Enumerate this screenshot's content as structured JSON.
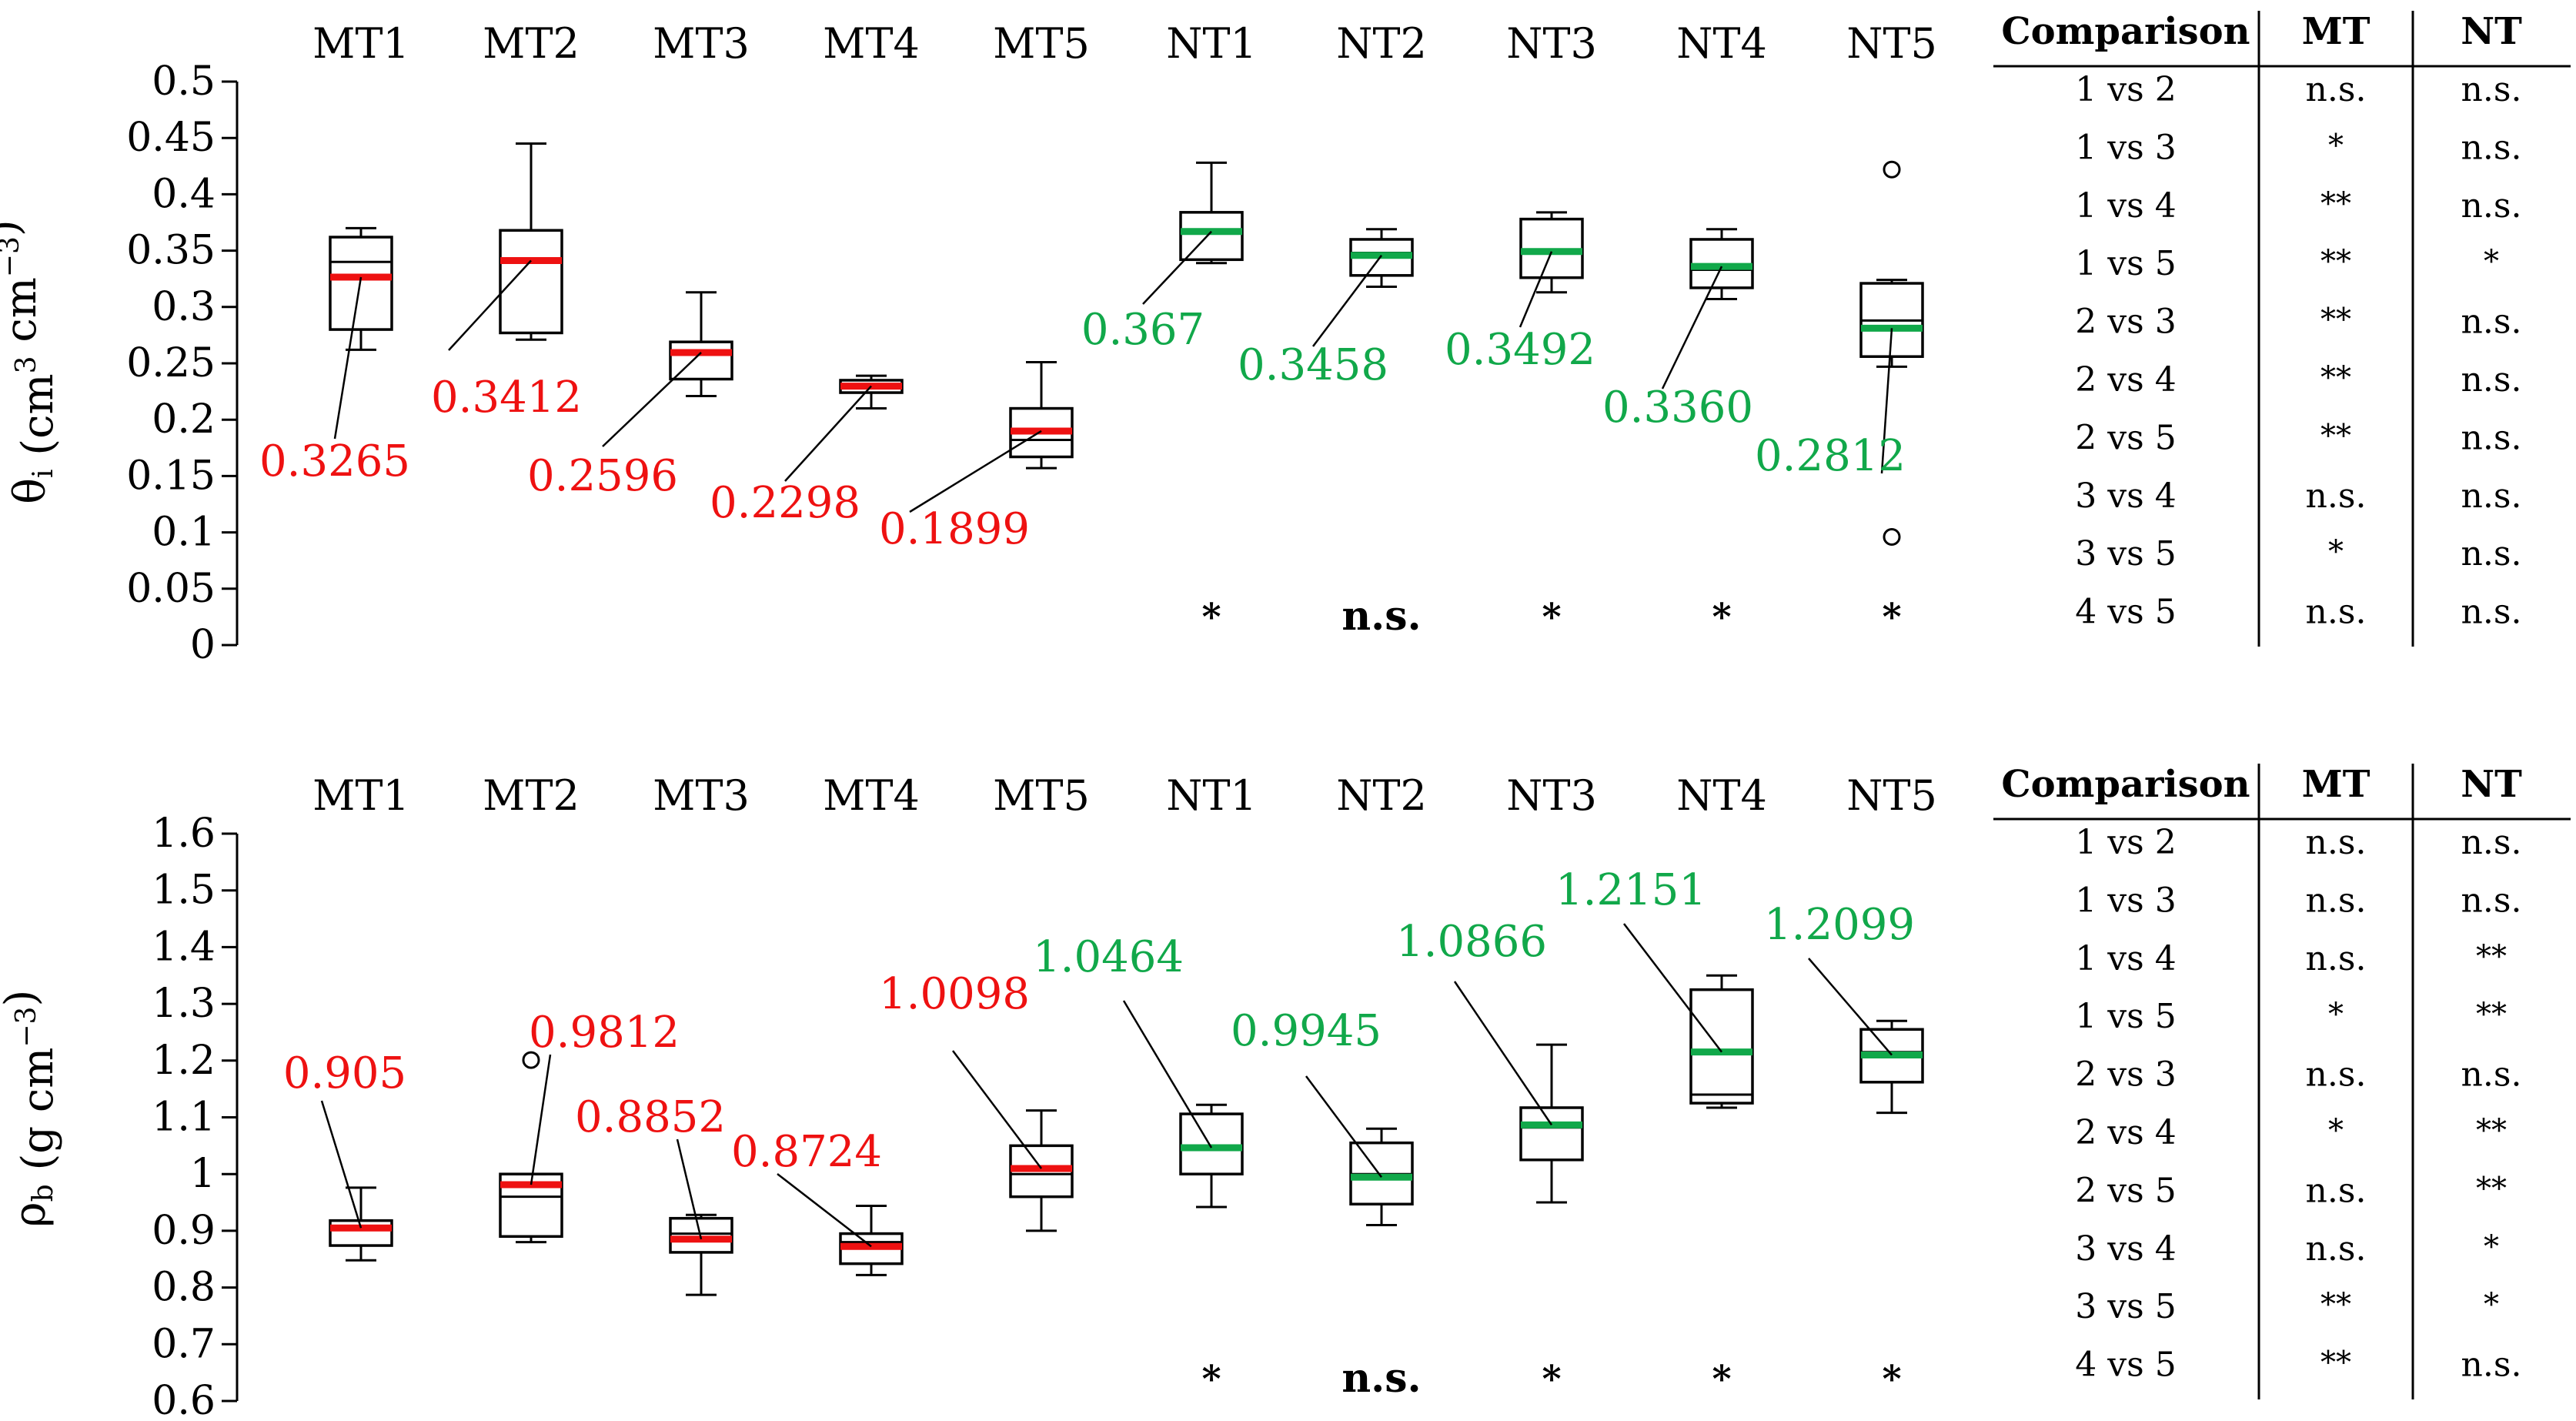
{
  "colors": {
    "mt": "#ee1111",
    "nt": "#11a84a",
    "box": "#000000"
  },
  "chart_data": [
    {
      "type": "boxplot",
      "ylabel_symbol": "θ",
      "ylabel_sub": "i",
      "ylabel_rest": " (cm",
      "ylabel_sup1": "3",
      "ylabel_mid": " cm",
      "ylabel_sup2": "−3",
      "ylabel_end": ")",
      "ylim": [
        0,
        0.5
      ],
      "yticks": [
        "0",
        "0.05",
        "0.1",
        "0.15",
        "0.2",
        "0.25",
        "0.3",
        "0.35",
        "0.4",
        "0.45",
        "0.5"
      ],
      "groups": [
        {
          "name": "MT1",
          "mean": 0.3265,
          "label": "0.3265",
          "series": "MT",
          "whisker_low": 0.262,
          "q1": 0.28,
          "median": 0.34,
          "q3": 0.362,
          "whisker_high": 0.37,
          "outliers": [],
          "star": ""
        },
        {
          "name": "MT2",
          "mean": 0.3412,
          "label": "0.3412",
          "series": "MT",
          "whisker_low": 0.271,
          "q1": 0.277,
          "median": 0.34,
          "q3": 0.368,
          "whisker_high": 0.445,
          "outliers": [],
          "star": ""
        },
        {
          "name": "MT3",
          "mean": 0.2596,
          "label": "0.2596",
          "series": "MT",
          "whisker_low": 0.221,
          "q1": 0.236,
          "median": 0.261,
          "q3": 0.269,
          "whisker_high": 0.313,
          "outliers": [],
          "star": ""
        },
        {
          "name": "MT4",
          "mean": 0.2298,
          "label": "0.2298",
          "series": "MT",
          "whisker_low": 0.21,
          "q1": 0.224,
          "median": 0.229,
          "q3": 0.235,
          "whisker_high": 0.239,
          "outliers": [],
          "star": ""
        },
        {
          "name": "MT5",
          "mean": 0.1899,
          "label": "0.1899",
          "series": "MT",
          "whisker_low": 0.157,
          "q1": 0.167,
          "median": 0.182,
          "q3": 0.21,
          "whisker_high": 0.251,
          "outliers": [],
          "star": ""
        },
        {
          "name": "NT1",
          "mean": 0.367,
          "label": "0.367",
          "series": "NT",
          "whisker_low": 0.339,
          "q1": 0.342,
          "median": 0.366,
          "q3": 0.384,
          "whisker_high": 0.428,
          "outliers": [],
          "star": "*"
        },
        {
          "name": "NT2",
          "mean": 0.3458,
          "label": "0.3458",
          "series": "NT",
          "whisker_low": 0.318,
          "q1": 0.328,
          "median": 0.348,
          "q3": 0.36,
          "whisker_high": 0.369,
          "outliers": [],
          "star": "n.s."
        },
        {
          "name": "NT3",
          "mean": 0.3492,
          "label": "0.3492",
          "series": "NT",
          "whisker_low": 0.313,
          "q1": 0.326,
          "median": 0.349,
          "q3": 0.378,
          "whisker_high": 0.384,
          "outliers": [],
          "star": "*"
        },
        {
          "name": "NT4",
          "mean": 0.336,
          "label": "0.3360",
          "series": "NT",
          "whisker_low": 0.307,
          "q1": 0.317,
          "median": 0.333,
          "q3": 0.36,
          "whisker_high": 0.369,
          "outliers": [],
          "star": "*"
        },
        {
          "name": "NT5",
          "mean": 0.2812,
          "label": "0.2812",
          "series": "NT",
          "whisker_low": 0.247,
          "q1": 0.256,
          "median": 0.288,
          "q3": 0.321,
          "whisker_high": 0.324,
          "outliers": [
            0.422,
            0.096
          ],
          "star": "*"
        }
      ],
      "table": {
        "headers": [
          "Comparison",
          "MT",
          "NT"
        ],
        "rows": [
          [
            "1 vs 2",
            "n.s.",
            "n.s."
          ],
          [
            "1 vs 3",
            "*",
            "n.s."
          ],
          [
            "1 vs 4",
            "**",
            "n.s."
          ],
          [
            "1 vs 5",
            "**",
            "*"
          ],
          [
            "2 vs 3",
            "**",
            "n.s."
          ],
          [
            "2 vs 4",
            "**",
            "n.s."
          ],
          [
            "2 vs 5",
            "**",
            "n.s."
          ],
          [
            "3 vs 4",
            "n.s.",
            "n.s."
          ],
          [
            "3 vs 5",
            "*",
            "n.s."
          ],
          [
            "4 vs 5",
            "n.s.",
            "n.s."
          ]
        ]
      }
    },
    {
      "type": "boxplot",
      "ylabel_symbol": "ρ",
      "ylabel_sub": "b",
      "ylabel_rest": " (g cm",
      "ylabel_sup1": "−3",
      "ylabel_mid": "",
      "ylabel_sup2": "",
      "ylabel_end": ")",
      "ylim": [
        0.6,
        1.6
      ],
      "yticks": [
        "0.6",
        "0.7",
        "0.8",
        "0.9",
        "1",
        "1.1",
        "1.2",
        "1.3",
        "1.4",
        "1.5",
        "1.6"
      ],
      "groups": [
        {
          "name": "MT1",
          "mean": 0.905,
          "label": "0.905",
          "series": "MT",
          "whisker_low": 0.848,
          "q1": 0.874,
          "median": 0.905,
          "q3": 0.918,
          "whisker_high": 0.976,
          "outliers": [],
          "star": ""
        },
        {
          "name": "MT2",
          "mean": 0.9812,
          "label": "0.9812",
          "series": "MT",
          "whisker_low": 0.88,
          "q1": 0.89,
          "median": 0.96,
          "q3": 1.0,
          "whisker_high": 1.0,
          "outliers": [
            1.201
          ],
          "star": ""
        },
        {
          "name": "MT3",
          "mean": 0.8852,
          "label": "0.8852",
          "series": "MT",
          "whisker_low": 0.787,
          "q1": 0.862,
          "median": 0.895,
          "q3": 0.922,
          "whisker_high": 0.928,
          "outliers": [],
          "star": ""
        },
        {
          "name": "MT4",
          "mean": 0.8724,
          "label": "0.8724",
          "series": "MT",
          "whisker_low": 0.822,
          "q1": 0.842,
          "median": 0.88,
          "q3": 0.895,
          "whisker_high": 0.944,
          "outliers": [],
          "star": ""
        },
        {
          "name": "MT5",
          "mean": 1.0098,
          "label": "1.0098",
          "series": "MT",
          "whisker_low": 0.9,
          "q1": 0.96,
          "median": 1.0,
          "q3": 1.05,
          "whisker_high": 1.112,
          "outliers": [],
          "star": ""
        },
        {
          "name": "NT1",
          "mean": 1.0464,
          "label": "1.0464",
          "series": "NT",
          "whisker_low": 0.942,
          "q1": 1.0,
          "median": 1.05,
          "q3": 1.106,
          "whisker_high": 1.122,
          "outliers": [],
          "star": "*"
        },
        {
          "name": "NT2",
          "mean": 0.9945,
          "label": "0.9945",
          "series": "NT",
          "whisker_low": 0.91,
          "q1": 0.947,
          "median": 1.0,
          "q3": 1.055,
          "whisker_high": 1.08,
          "outliers": [],
          "star": "n.s."
        },
        {
          "name": "NT3",
          "mean": 1.0866,
          "label": "1.0866",
          "series": "NT",
          "whisker_low": 0.95,
          "q1": 1.025,
          "median": 1.082,
          "q3": 1.117,
          "whisker_high": 1.228,
          "outliers": [],
          "star": "*"
        },
        {
          "name": "NT4",
          "mean": 1.2151,
          "label": "1.2151",
          "series": "NT",
          "whisker_low": 1.117,
          "q1": 1.125,
          "median": 1.14,
          "q3": 1.325,
          "whisker_high": 1.35,
          "outliers": [],
          "star": "*"
        },
        {
          "name": "NT5",
          "mean": 1.2099,
          "label": "1.2099",
          "series": "NT",
          "whisker_low": 1.108,
          "q1": 1.162,
          "median": 1.215,
          "q3": 1.255,
          "whisker_high": 1.27,
          "outliers": [],
          "star": "*"
        }
      ],
      "table": {
        "headers": [
          "Comparison",
          "MT",
          "NT"
        ],
        "rows": [
          [
            "1 vs 2",
            "n.s.",
            "n.s."
          ],
          [
            "1 vs 3",
            "n.s.",
            "n.s."
          ],
          [
            "1 vs 4",
            "n.s.",
            "**"
          ],
          [
            "1 vs 5",
            "*",
            "**"
          ],
          [
            "2 vs 3",
            "n.s.",
            "n.s."
          ],
          [
            "2 vs 4",
            "*",
            "**"
          ],
          [
            "2 vs 5",
            "n.s.",
            "**"
          ],
          [
            "3 vs 4",
            "n.s.",
            "*"
          ],
          [
            "3 vs 5",
            "**",
            "*"
          ],
          [
            "4 vs 5",
            "**",
            "n.s."
          ]
        ]
      }
    }
  ]
}
